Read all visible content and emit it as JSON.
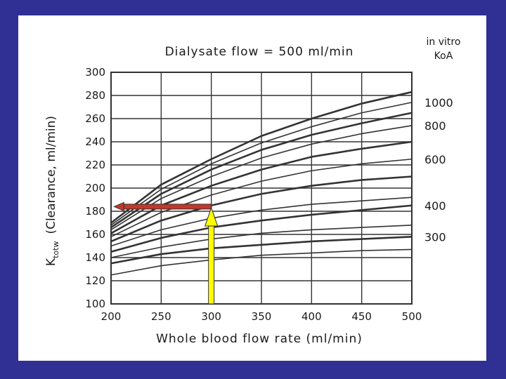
{
  "chart_data": {
    "type": "line",
    "title": "Dialysate flow = 500 ml/min",
    "xlabel": "Whole blood flow rate (ml/min)",
    "ylabel_main": "K",
    "ylabel_sub": "totw",
    "ylabel_rest": "(Clearance, ml/min)",
    "xlim": [
      200,
      500
    ],
    "ylim": [
      100,
      300
    ],
    "xticks": [
      200,
      250,
      300,
      350,
      400,
      450,
      500
    ],
    "yticks": [
      100,
      120,
      140,
      160,
      180,
      200,
      220,
      240,
      260,
      280,
      300
    ],
    "grid": true,
    "legend_title": [
      "in vitro",
      "KoA"
    ],
    "koa_labels": [
      {
        "text": "1000",
        "y": 274
      },
      {
        "text": "800",
        "y": 254
      },
      {
        "text": "600",
        "y": 225
      },
      {
        "text": "400",
        "y": 185
      },
      {
        "text": "300",
        "y": 158
      }
    ],
    "series": [
      {
        "values": [
          {
            "x": 200,
            "y": 170
          },
          {
            "x": 250,
            "y": 203
          },
          {
            "x": 300,
            "y": 225
          },
          {
            "x": 350,
            "y": 245
          },
          {
            "x": 400,
            "y": 260
          },
          {
            "x": 450,
            "y": 273
          },
          {
            "x": 500,
            "y": 283
          }
        ]
      },
      {
        "values": [
          {
            "x": 200,
            "y": 168
          },
          {
            "x": 250,
            "y": 199
          },
          {
            "x": 300,
            "y": 221
          },
          {
            "x": 350,
            "y": 239
          },
          {
            "x": 400,
            "y": 253
          },
          {
            "x": 450,
            "y": 265
          },
          {
            "x": 500,
            "y": 274
          }
        ]
      },
      {
        "values": [
          {
            "x": 200,
            "y": 166
          },
          {
            "x": 250,
            "y": 195
          },
          {
            "x": 300,
            "y": 216
          },
          {
            "x": 350,
            "y": 233
          },
          {
            "x": 400,
            "y": 246
          },
          {
            "x": 450,
            "y": 256
          },
          {
            "x": 500,
            "y": 265
          }
        ]
      },
      {
        "values": [
          {
            "x": 200,
            "y": 164
          },
          {
            "x": 250,
            "y": 191
          },
          {
            "x": 300,
            "y": 210
          },
          {
            "x": 350,
            "y": 226
          },
          {
            "x": 400,
            "y": 238
          },
          {
            "x": 450,
            "y": 247
          },
          {
            "x": 500,
            "y": 254
          }
        ]
      },
      {
        "values": [
          {
            "x": 200,
            "y": 161
          },
          {
            "x": 250,
            "y": 185
          },
          {
            "x": 300,
            "y": 202
          },
          {
            "x": 350,
            "y": 216
          },
          {
            "x": 400,
            "y": 227
          },
          {
            "x": 450,
            "y": 234
          },
          {
            "x": 500,
            "y": 240
          }
        ]
      },
      {
        "values": [
          {
            "x": 200,
            "y": 158
          },
          {
            "x": 250,
            "y": 179
          },
          {
            "x": 300,
            "y": 194
          },
          {
            "x": 350,
            "y": 206
          },
          {
            "x": 400,
            "y": 215
          },
          {
            "x": 450,
            "y": 221
          },
          {
            "x": 500,
            "y": 225
          }
        ]
      },
      {
        "values": [
          {
            "x": 200,
            "y": 154
          },
          {
            "x": 250,
            "y": 172
          },
          {
            "x": 300,
            "y": 185
          },
          {
            "x": 350,
            "y": 195
          },
          {
            "x": 400,
            "y": 202
          },
          {
            "x": 450,
            "y": 207
          },
          {
            "x": 500,
            "y": 210
          }
        ]
      },
      {
        "values": [
          {
            "x": 200,
            "y": 150
          },
          {
            "x": 250,
            "y": 164
          },
          {
            "x": 300,
            "y": 174
          },
          {
            "x": 350,
            "y": 181
          },
          {
            "x": 400,
            "y": 186
          },
          {
            "x": 450,
            "y": 189
          },
          {
            "x": 500,
            "y": 192
          }
        ]
      },
      {
        "values": [
          {
            "x": 200,
            "y": 145
          },
          {
            "x": 250,
            "y": 157
          },
          {
            "x": 300,
            "y": 166
          },
          {
            "x": 350,
            "y": 172
          },
          {
            "x": 400,
            "y": 177
          },
          {
            "x": 450,
            "y": 181
          },
          {
            "x": 500,
            "y": 185
          }
        ]
      },
      {
        "values": [
          {
            "x": 200,
            "y": 140
          },
          {
            "x": 250,
            "y": 149
          },
          {
            "x": 300,
            "y": 156
          },
          {
            "x": 350,
            "y": 161
          },
          {
            "x": 400,
            "y": 164
          },
          {
            "x": 450,
            "y": 166
          },
          {
            "x": 500,
            "y": 168
          }
        ]
      },
      {
        "values": [
          {
            "x": 200,
            "y": 135
          },
          {
            "x": 250,
            "y": 143
          },
          {
            "x": 300,
            "y": 148
          },
          {
            "x": 350,
            "y": 151
          },
          {
            "x": 400,
            "y": 154
          },
          {
            "x": 450,
            "y": 156
          },
          {
            "x": 500,
            "y": 158
          }
        ]
      },
      {
        "values": [
          {
            "x": 200,
            "y": 125
          },
          {
            "x": 250,
            "y": 133
          },
          {
            "x": 300,
            "y": 138
          },
          {
            "x": 350,
            "y": 142
          },
          {
            "x": 400,
            "y": 144
          },
          {
            "x": 450,
            "y": 146
          },
          {
            "x": 500,
            "y": 147
          }
        ]
      }
    ],
    "annotations": [
      {
        "kind": "arrow",
        "color": "#c0392b",
        "from": {
          "x": 300,
          "y": 184
        },
        "to": {
          "x": 203,
          "y": 184
        }
      },
      {
        "kind": "arrow",
        "color": "#ffff00",
        "from": {
          "x": 300,
          "y": 100
        },
        "to": {
          "x": 300,
          "y": 183
        }
      }
    ]
  },
  "colors": {
    "background": "#2f2f94",
    "panel": "#ffffff",
    "lines": "#333333",
    "grid": "#333333",
    "red_arrow": "#c0392b",
    "yellow_arrow": "#ffff00"
  }
}
